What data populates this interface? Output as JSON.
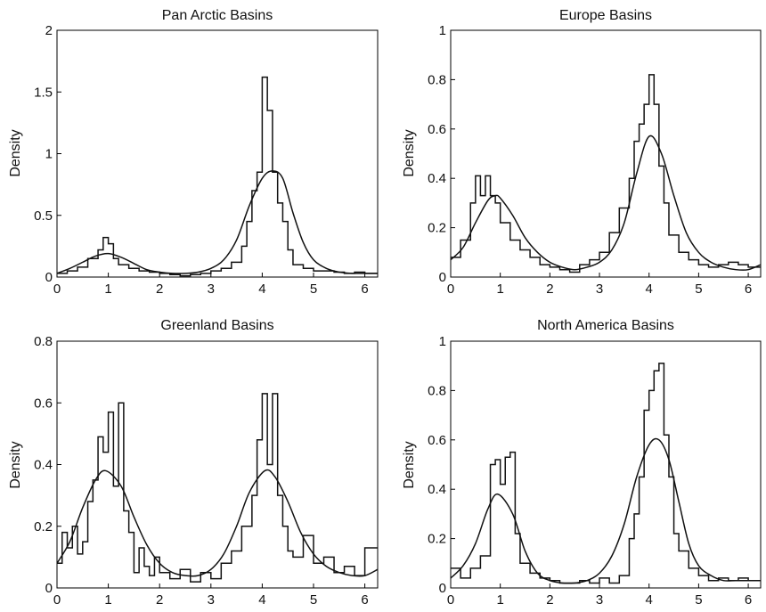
{
  "chart_data": [
    {
      "type": "line",
      "title": "Pan Arctic Basins",
      "ylabel": "Density",
      "xlim": [
        0,
        6.25
      ],
      "ylim": [
        0,
        2
      ],
      "xticks": [
        0,
        1,
        2,
        3,
        4,
        5,
        6
      ],
      "yticks": [
        0,
        0.5,
        1,
        1.5,
        2
      ],
      "yticklabels": [
        "0",
        "0.5",
        "1",
        "1.5",
        "2"
      ],
      "histogram": {
        "bin_edges": [
          0.0,
          0.2,
          0.4,
          0.6,
          0.8,
          0.9,
          1.0,
          1.1,
          1.2,
          1.4,
          1.6,
          1.8,
          2.0,
          2.2,
          2.4,
          2.6,
          2.8,
          3.0,
          3.2,
          3.4,
          3.6,
          3.7,
          3.8,
          3.9,
          4.0,
          4.1,
          4.2,
          4.3,
          4.4,
          4.5,
          4.6,
          4.8,
          5.0,
          5.2,
          5.4,
          5.6,
          5.8,
          6.0,
          6.25
        ],
        "values": [
          0.03,
          0.05,
          0.08,
          0.15,
          0.22,
          0.32,
          0.27,
          0.15,
          0.1,
          0.07,
          0.05,
          0.04,
          0.03,
          0.02,
          0.01,
          0.02,
          0.03,
          0.05,
          0.07,
          0.12,
          0.25,
          0.45,
          0.7,
          0.85,
          1.62,
          1.35,
          0.85,
          0.6,
          0.45,
          0.22,
          0.1,
          0.07,
          0.05,
          0.05,
          0.04,
          0.03,
          0.04,
          0.03
        ]
      },
      "fit": {
        "x": [
          0.0,
          0.25,
          0.5,
          0.75,
          1.0,
          1.25,
          1.5,
          1.75,
          2.0,
          2.25,
          2.5,
          2.75,
          3.0,
          3.25,
          3.5,
          3.75,
          4.0,
          4.2,
          4.4,
          4.6,
          4.8,
          5.0,
          5.25,
          5.5,
          5.75,
          6.0,
          6.25
        ],
        "y": [
          0.03,
          0.07,
          0.12,
          0.17,
          0.19,
          0.16,
          0.11,
          0.06,
          0.04,
          0.03,
          0.03,
          0.04,
          0.07,
          0.14,
          0.3,
          0.58,
          0.8,
          0.86,
          0.8,
          0.52,
          0.28,
          0.14,
          0.07,
          0.04,
          0.03,
          0.03,
          0.03
        ]
      }
    },
    {
      "type": "line",
      "title": "Europe Basins",
      "ylabel": "Density",
      "xlim": [
        0,
        6.25
      ],
      "ylim": [
        0,
        1
      ],
      "xticks": [
        0,
        1,
        2,
        3,
        4,
        5,
        6
      ],
      "yticks": [
        0,
        0.2,
        0.4,
        0.6,
        0.8,
        1
      ],
      "yticklabels": [
        "0",
        "0.2",
        "0.4",
        "0.6",
        "0.8",
        "1"
      ],
      "histogram": {
        "bin_edges": [
          0.0,
          0.2,
          0.4,
          0.5,
          0.6,
          0.7,
          0.8,
          0.9,
          1.0,
          1.2,
          1.4,
          1.6,
          1.8,
          2.0,
          2.2,
          2.4,
          2.6,
          2.8,
          3.0,
          3.2,
          3.4,
          3.6,
          3.7,
          3.8,
          3.9,
          4.0,
          4.1,
          4.2,
          4.3,
          4.4,
          4.6,
          4.8,
          5.0,
          5.2,
          5.4,
          5.6,
          5.8,
          6.0,
          6.25
        ],
        "values": [
          0.08,
          0.15,
          0.3,
          0.41,
          0.33,
          0.41,
          0.33,
          0.3,
          0.22,
          0.15,
          0.11,
          0.08,
          0.05,
          0.04,
          0.03,
          0.02,
          0.05,
          0.07,
          0.1,
          0.18,
          0.28,
          0.4,
          0.55,
          0.62,
          0.7,
          0.82,
          0.7,
          0.45,
          0.3,
          0.17,
          0.1,
          0.07,
          0.05,
          0.04,
          0.05,
          0.06,
          0.05,
          0.04
        ]
      },
      "fit": {
        "x": [
          0.0,
          0.25,
          0.5,
          0.75,
          0.9,
          1.0,
          1.25,
          1.5,
          1.75,
          2.0,
          2.25,
          2.5,
          2.75,
          3.0,
          3.25,
          3.5,
          3.75,
          4.0,
          4.25,
          4.5,
          4.75,
          5.0,
          5.25,
          5.5,
          5.75,
          6.0,
          6.25
        ],
        "y": [
          0.07,
          0.12,
          0.22,
          0.31,
          0.33,
          0.32,
          0.25,
          0.16,
          0.1,
          0.06,
          0.04,
          0.03,
          0.04,
          0.06,
          0.11,
          0.22,
          0.42,
          0.57,
          0.5,
          0.33,
          0.18,
          0.1,
          0.06,
          0.04,
          0.03,
          0.03,
          0.05
        ]
      }
    },
    {
      "type": "line",
      "title": "Greenland Basins",
      "ylabel": "Density",
      "xlim": [
        0,
        6.25
      ],
      "ylim": [
        0,
        0.8
      ],
      "xticks": [
        0,
        1,
        2,
        3,
        4,
        5,
        6
      ],
      "yticks": [
        0,
        0.2,
        0.4,
        0.6,
        0.8
      ],
      "yticklabels": [
        "0",
        "0.2",
        "0.4",
        "0.6",
        "0.8"
      ],
      "histogram": {
        "bin_edges": [
          0.0,
          0.1,
          0.2,
          0.3,
          0.4,
          0.5,
          0.6,
          0.7,
          0.8,
          0.9,
          1.0,
          1.1,
          1.2,
          1.3,
          1.4,
          1.5,
          1.6,
          1.7,
          1.8,
          1.9,
          2.0,
          2.2,
          2.4,
          2.6,
          2.8,
          3.0,
          3.2,
          3.4,
          3.6,
          3.8,
          3.9,
          4.0,
          4.1,
          4.2,
          4.3,
          4.4,
          4.5,
          4.6,
          4.8,
          5.0,
          5.2,
          5.4,
          5.6,
          5.8,
          6.0,
          6.25
        ],
        "values": [
          0.08,
          0.18,
          0.13,
          0.2,
          0.11,
          0.15,
          0.28,
          0.35,
          0.49,
          0.44,
          0.57,
          0.33,
          0.6,
          0.25,
          0.18,
          0.05,
          0.13,
          0.07,
          0.04,
          0.1,
          0.05,
          0.03,
          0.06,
          0.02,
          0.05,
          0.03,
          0.08,
          0.12,
          0.2,
          0.3,
          0.48,
          0.63,
          0.4,
          0.63,
          0.3,
          0.2,
          0.12,
          0.1,
          0.17,
          0.08,
          0.1,
          0.05,
          0.07,
          0.04,
          0.13
        ]
      },
      "fit": {
        "x": [
          0.0,
          0.25,
          0.5,
          0.75,
          0.95,
          1.25,
          1.5,
          1.75,
          2.0,
          2.25,
          2.5,
          2.75,
          3.0,
          3.25,
          3.5,
          3.75,
          4.05,
          4.25,
          4.5,
          4.75,
          5.0,
          5.25,
          5.5,
          5.75,
          6.0,
          6.25
        ],
        "y": [
          0.08,
          0.15,
          0.26,
          0.35,
          0.38,
          0.33,
          0.23,
          0.14,
          0.08,
          0.05,
          0.04,
          0.04,
          0.06,
          0.11,
          0.2,
          0.31,
          0.38,
          0.36,
          0.28,
          0.18,
          0.11,
          0.07,
          0.05,
          0.04,
          0.04,
          0.06
        ]
      }
    },
    {
      "type": "line",
      "title": "North America Basins",
      "ylabel": "Density",
      "xlim": [
        0,
        6.25
      ],
      "ylim": [
        0,
        1
      ],
      "xticks": [
        0,
        1,
        2,
        3,
        4,
        5,
        6
      ],
      "yticks": [
        0,
        0.2,
        0.4,
        0.6,
        0.8,
        1
      ],
      "yticklabels": [
        "0",
        "0.2",
        "0.4",
        "0.6",
        "0.8",
        "1"
      ],
      "histogram": {
        "bin_edges": [
          0.0,
          0.2,
          0.4,
          0.6,
          0.8,
          0.9,
          1.0,
          1.1,
          1.2,
          1.3,
          1.4,
          1.6,
          1.8,
          2.0,
          2.2,
          2.4,
          2.6,
          2.8,
          3.0,
          3.2,
          3.4,
          3.6,
          3.7,
          3.8,
          3.9,
          4.0,
          4.1,
          4.2,
          4.3,
          4.4,
          4.5,
          4.6,
          4.8,
          5.0,
          5.2,
          5.4,
          5.6,
          5.8,
          6.0,
          6.25
        ],
        "values": [
          0.08,
          0.04,
          0.08,
          0.13,
          0.5,
          0.52,
          0.42,
          0.53,
          0.55,
          0.22,
          0.1,
          0.06,
          0.04,
          0.03,
          0.02,
          0.02,
          0.03,
          0.02,
          0.04,
          0.02,
          0.05,
          0.2,
          0.3,
          0.45,
          0.72,
          0.8,
          0.88,
          0.91,
          0.62,
          0.45,
          0.22,
          0.15,
          0.08,
          0.05,
          0.03,
          0.04,
          0.03,
          0.04,
          0.03
        ]
      },
      "fit": {
        "x": [
          0.0,
          0.25,
          0.5,
          0.75,
          0.95,
          1.25,
          1.5,
          1.75,
          2.0,
          2.25,
          2.5,
          2.75,
          3.0,
          3.25,
          3.5,
          3.75,
          4.0,
          4.2,
          4.4,
          4.6,
          4.8,
          5.0,
          5.25,
          5.5,
          5.75,
          6.0,
          6.25
        ],
        "y": [
          0.04,
          0.09,
          0.18,
          0.32,
          0.38,
          0.3,
          0.15,
          0.06,
          0.03,
          0.02,
          0.02,
          0.03,
          0.06,
          0.13,
          0.26,
          0.45,
          0.58,
          0.6,
          0.52,
          0.35,
          0.18,
          0.09,
          0.05,
          0.03,
          0.03,
          0.03,
          0.03
        ]
      }
    }
  ]
}
